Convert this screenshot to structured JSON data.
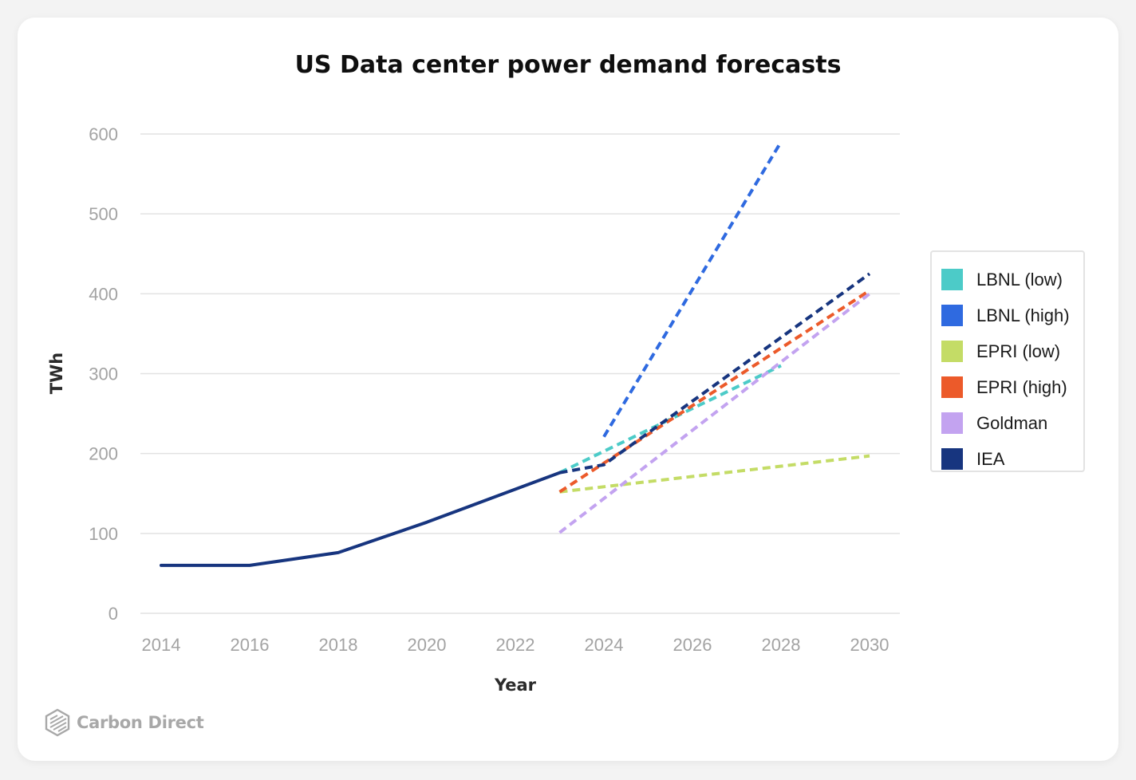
{
  "chart_data": {
    "type": "line",
    "title": "US Data center power demand forecasts",
    "xlabel": "Year",
    "ylabel": "TWh",
    "xlim": [
      2014,
      2030
    ],
    "ylim": [
      0,
      600
    ],
    "x_ticks": [
      "2014",
      "2016",
      "2018",
      "2020",
      "2022",
      "2024",
      "2026",
      "2028",
      "2030"
    ],
    "y_ticks": [
      "0",
      "100",
      "200",
      "300",
      "400",
      "500",
      "600"
    ],
    "grid": "horizontal",
    "legend_position": "right",
    "historical": {
      "color": "#17357f",
      "x": [
        2014,
        2016,
        2018,
        2020,
        2023
      ],
      "y": [
        60,
        60,
        76,
        114,
        176
      ]
    },
    "series": [
      {
        "name": "LBNL (low)",
        "color": "#4ccbc8",
        "x": [
          2023,
          2028
        ],
        "y": [
          176,
          310
        ]
      },
      {
        "name": "LBNL (high)",
        "color": "#2f6ae0",
        "x": [
          2024,
          2028
        ],
        "y": [
          221,
          590
        ]
      },
      {
        "name": "EPRI (low)",
        "color": "#c4dc66",
        "x": [
          2023,
          2030
        ],
        "y": [
          152,
          197
        ]
      },
      {
        "name": "EPRI (high)",
        "color": "#ec5a2a",
        "x": [
          2023,
          2030
        ],
        "y": [
          152,
          404
        ]
      },
      {
        "name": "Goldman",
        "color": "#c3a3f0",
        "x": [
          2023,
          2030
        ],
        "y": [
          101,
          400
        ]
      },
      {
        "name": "IEA",
        "color": "#17357f",
        "x": [
          2023,
          2024,
          2030
        ],
        "y": [
          176,
          186,
          425
        ]
      }
    ]
  },
  "brand": {
    "name": "Carbon Direct",
    "icon": "carbon-direct-logo-icon"
  }
}
